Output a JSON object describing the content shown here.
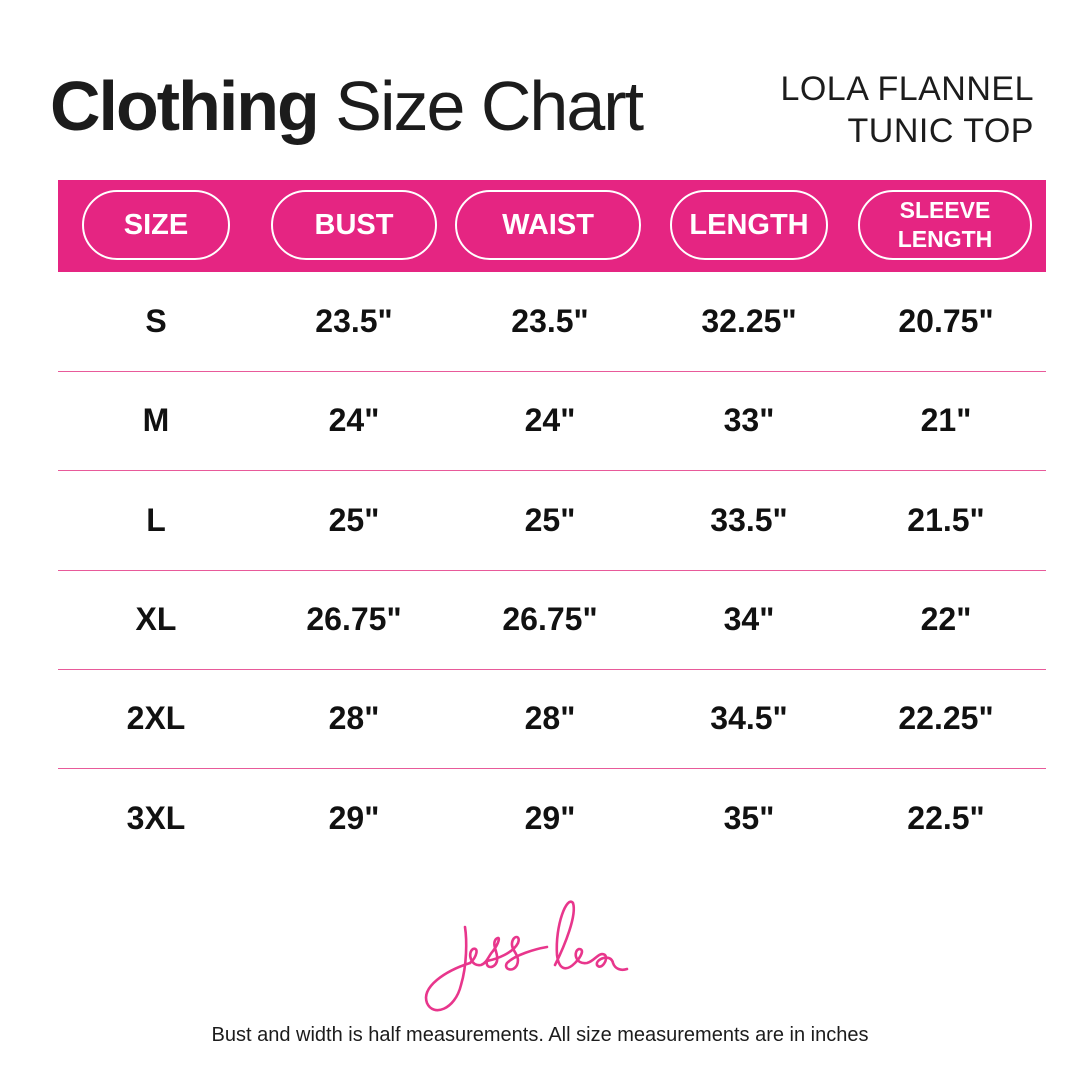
{
  "header": {
    "title_bold": "Clothing",
    "title_rest": "Size Chart",
    "product_line1": "LOLA FLANNEL",
    "product_line2": "TUNIC TOP"
  },
  "colors": {
    "accent": "#e52582",
    "text": "#111111"
  },
  "table": {
    "columns": [
      "SIZE",
      "BUST",
      "WAIST",
      "LENGTH",
      "SLEEVE LENGTH"
    ],
    "rows": [
      [
        "S",
        "23.5\"",
        "23.5\"",
        "32.25\"",
        "20.75\""
      ],
      [
        "M",
        "24\"",
        "24\"",
        "33\"",
        "21\""
      ],
      [
        "L",
        "25\"",
        "25\"",
        "33.5\"",
        "21.5\""
      ],
      [
        "XL",
        "26.75\"",
        "26.75\"",
        "34\"",
        "22\""
      ],
      [
        "2XL",
        "28\"",
        "28\"",
        "34.5\"",
        "22.25\""
      ],
      [
        "3XL",
        "29\"",
        "29\"",
        "35\"",
        "22.5\""
      ]
    ]
  },
  "logo": {
    "text": "jess lea"
  },
  "footer": {
    "note": "Bust and width is half measurements. All size measurements are in inches"
  }
}
